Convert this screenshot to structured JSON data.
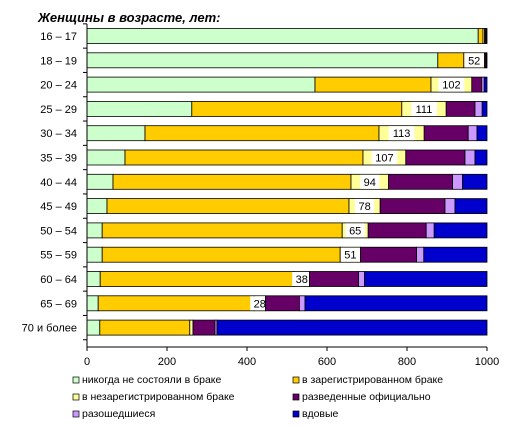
{
  "chart_data": {
    "type": "bar",
    "orientation": "horizontal",
    "stacked": true,
    "title": "Женщины в возрасте, лет:",
    "categories": [
      "16 – 17",
      "18 – 19",
      "20 – 24",
      "25 – 29",
      "30 – 34",
      "35 – 39",
      "40 – 44",
      "45 – 49",
      "50 – 54",
      "55 – 59",
      "60 – 64",
      "65 – 69",
      "70 и более"
    ],
    "xlim": [
      0,
      1000
    ],
    "xticks": [
      "0",
      "200",
      "400",
      "600",
      "800",
      "1000"
    ],
    "grid": false,
    "legend_position": "bottom",
    "series": [
      {
        "name": "никогда не состояли в браке",
        "color": "#ccffcc",
        "values": [
          978,
          877,
          570,
          262,
          145,
          95,
          65,
          50,
          38,
          38,
          33,
          28,
          32
        ]
      },
      {
        "name": "в зарегистрированном браке",
        "color": "#ffcc00",
        "values": [
          12,
          65,
          290,
          525,
          585,
          595,
          595,
          605,
          600,
          595,
          485,
          390,
          225
        ]
      },
      {
        "name": "в незарегистрированном браке",
        "color": "#ffff99",
        "values": [
          4,
          52,
          102,
          111,
          113,
          107,
          94,
          78,
          65,
          51,
          38,
          28,
          8
        ]
      },
      {
        "name": "разведенные официально",
        "color": "#660066",
        "values": [
          3,
          3,
          25,
          72,
          110,
          148,
          160,
          162,
          145,
          140,
          123,
          85,
          55
        ]
      },
      {
        "name": "разошедшиеся",
        "color": "#cc99ff",
        "values": [
          1,
          1,
          6,
          18,
          22,
          25,
          25,
          25,
          20,
          18,
          15,
          14,
          5
        ]
      },
      {
        "name": "вдовые",
        "color": "#0000cc",
        "values": [
          2,
          2,
          7,
          12,
          25,
          30,
          61,
          80,
          132,
          158,
          306,
          455,
          675
        ]
      }
    ],
    "data_labels": {
      "series_index": 2,
      "values": [
        "",
        "52",
        "102",
        "111",
        "113",
        "107",
        "94",
        "78",
        "65",
        "51",
        "38",
        "28",
        ""
      ]
    }
  }
}
